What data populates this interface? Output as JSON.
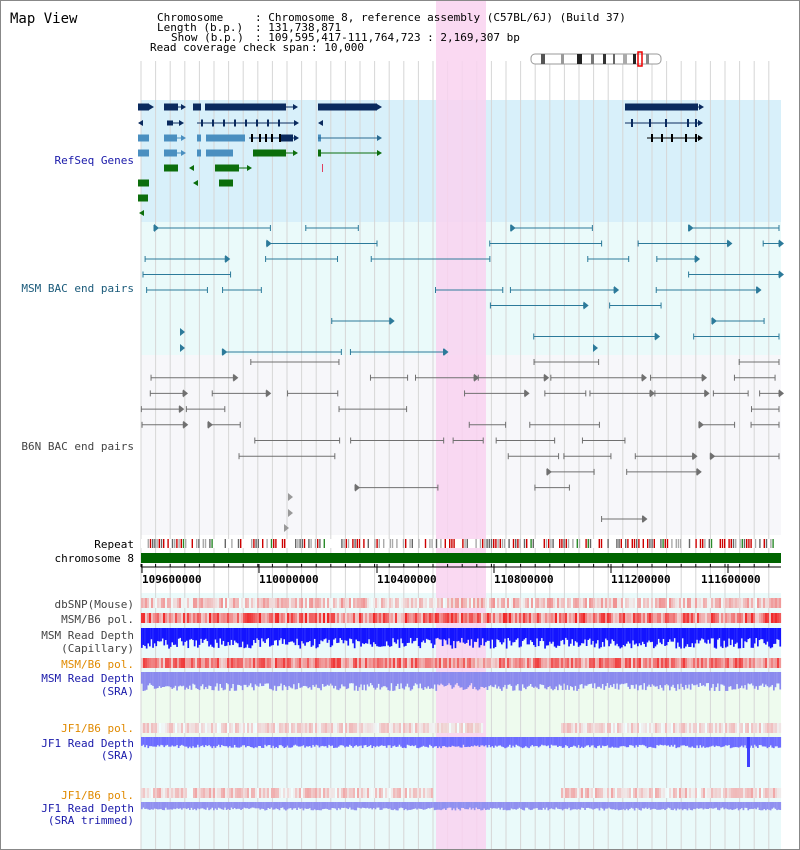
{
  "header": {
    "title": "Map View",
    "chromosome_label": "Chromosome",
    "chromosome_value": ": Chromosome 8, reference assembly (C57BL/6J) (Build 37)",
    "length_label": "Length (b.p.)",
    "length_value": ": 131,738,871",
    "show_label": "Show (b.p.)",
    "show_value": ": 109,595,417-111,764,723 : 2,169,307 bp",
    "span_label": "Read coverage check span",
    "span_value": ": 10,000"
  },
  "tracks": {
    "refseq": "RefSeq Genes",
    "msm_bac": "MSM BAC end pairs",
    "b6n_bac": "B6N BAC end pairs",
    "repeat": "Repeat",
    "chromosome": "chromosome 8",
    "dbsnp": "dbSNP(Mouse)",
    "msm_b6_pol": "MSM/B6 pol.",
    "msm_read_depth_cap_1": "MSM Read Depth",
    "msm_read_depth_cap_2": "(Capillary)",
    "msm_b6_pol_2": "MSM/B6 pol.",
    "msm_read_depth_sra_1": "MSM Read Depth",
    "msm_read_depth_sra_2": "(SRA)",
    "jf1_b6_pol": "JF1/B6 pol.",
    "jf1_read_depth_1": "JF1 Read Depth",
    "jf1_read_depth_2": "(SRA)",
    "jf1_b6_pol_2": "JF1/B6 pol.",
    "jf1_trim_1": "JF1 Read Depth",
    "jf1_trim_2": "(SRA trimmed)"
  },
  "axis": {
    "ticks": [
      "109600000",
      "110000000",
      "110400000",
      "110800000",
      "111200000",
      "111600000"
    ]
  },
  "colors": {
    "refseq_bg": "#d8f0fa",
    "bac_bg": "#eafafa",
    "highlight": "#f9d2f0",
    "gene_navy": "#0a2a5e",
    "gene_blue": "#4a8fc0",
    "gene_green": "#0c6e0c",
    "msm_bac": "#2c7a9a",
    "b6n_bac": "#707070",
    "chromosome_bar": "#006400",
    "depth_blue": "#1414ff",
    "depth_light": "#7070ff"
  }
}
